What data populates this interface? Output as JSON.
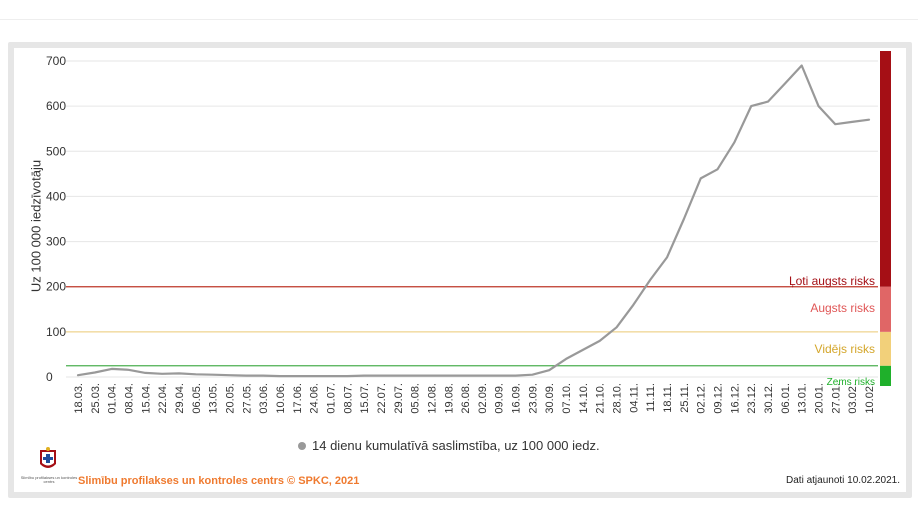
{
  "chart_data": {
    "type": "line",
    "title": "",
    "xlabel": "",
    "ylabel": "Uz 100 000 iedzīvotāju",
    "ylim": [
      0,
      700
    ],
    "yticks": [
      0,
      100,
      200,
      300,
      400,
      500,
      600,
      700
    ],
    "grid": true,
    "x_tick_labels": [
      "18.03.",
      "25.03.",
      "01.04.",
      "08.04.",
      "15.04.",
      "22.04.",
      "29.04.",
      "06.05.",
      "13.05.",
      "20.05.",
      "27.05.",
      "03.06.",
      "10.06.",
      "17.06.",
      "24.06.",
      "01.07.",
      "08.07.",
      "15.07.",
      "22.07.",
      "29.07.",
      "05.08.",
      "12.08.",
      "19.08.",
      "26.08.",
      "02.09.",
      "09.09.",
      "16.09.",
      "23.09.",
      "30.09.",
      "07.10.",
      "14.10.",
      "21.10.",
      "28.10.",
      "04.11.",
      "11.11.",
      "18.11.",
      "25.11.",
      "02.12.",
      "09.12.",
      "16.12.",
      "23.12.",
      "30.12.",
      "06.01.",
      "13.01.",
      "20.01.",
      "27.01.",
      "03.02.",
      "10.02."
    ],
    "series": [
      {
        "name": "14 dienu kumulatīvā saslimstība, uz 100 000 iedz.",
        "color": "#999999",
        "x": [
          "18.03.",
          "25.03.",
          "01.04.",
          "08.04.",
          "15.04.",
          "22.04.",
          "29.04.",
          "06.05.",
          "13.05.",
          "20.05.",
          "27.05.",
          "03.06.",
          "10.06.",
          "17.06.",
          "24.06.",
          "01.07.",
          "08.07.",
          "15.07.",
          "22.07.",
          "29.07.",
          "05.08.",
          "12.08.",
          "19.08.",
          "26.08.",
          "02.09.",
          "09.09.",
          "16.09.",
          "23.09.",
          "30.09.",
          "07.10.",
          "14.10.",
          "21.10.",
          "28.10.",
          "04.11.",
          "11.11.",
          "18.11.",
          "25.11.",
          "02.12.",
          "09.12.",
          "16.12.",
          "23.12.",
          "30.12.",
          "06.01.",
          "13.01.",
          "20.01.",
          "27.01.",
          "03.02.",
          "10.02."
        ],
        "values": [
          4,
          10,
          18,
          16,
          9,
          7,
          8,
          6,
          5,
          4,
          3,
          3,
          2,
          2,
          2,
          2,
          2,
          3,
          3,
          3,
          3,
          3,
          3,
          3,
          3,
          3,
          3,
          5,
          15,
          40,
          60,
          80,
          110,
          160,
          215,
          265,
          350,
          440,
          460,
          520,
          600,
          610,
          650,
          690,
          600,
          560,
          565,
          570
        ]
      }
    ],
    "risk_bands": [
      {
        "label": "Zems risks",
        "from": 0,
        "to": 25,
        "color": "#1fb02b",
        "label_color": "#1fb02b"
      },
      {
        "label": "Vidējs risks",
        "from": 25,
        "to": 100,
        "color": "#f2d07a",
        "label_color": "#d4a62a"
      },
      {
        "label": "Augsts risks",
        "from": 100,
        "to": 200,
        "color": "#e06666",
        "label_color": "#e05656"
      },
      {
        "label": "Ļoti augsts risks",
        "from": 200,
        "to": 740,
        "color": "#a50f15",
        "label_color": "#a50f15"
      }
    ],
    "threshold_lines": [
      {
        "value": 25,
        "color": "#4caf50"
      },
      {
        "value": 100,
        "color": "#f0d590"
      },
      {
        "value": 200,
        "color": "#c0392b"
      }
    ]
  },
  "footer": {
    "logo_text": "Slimību profilakses un kontroles centrs",
    "credit": "Slimību profilakses un kontroles centrs © SPKC, 2021",
    "updated": "Dati atjaunoti 10.02.2021."
  }
}
